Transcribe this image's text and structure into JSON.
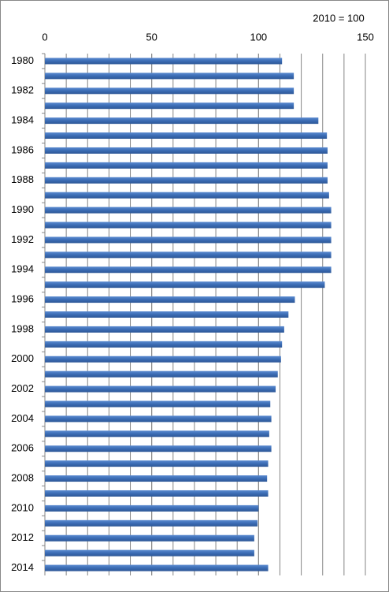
{
  "chart_data": {
    "type": "bar",
    "orientation": "horizontal",
    "annotation": "2010 = 100",
    "categories": [
      "1980",
      null,
      "1982",
      null,
      "1984",
      null,
      "1986",
      null,
      "1988",
      null,
      "1990",
      null,
      "1992",
      null,
      "1994",
      null,
      "1996",
      null,
      "1998",
      null,
      "2000",
      null,
      "2002",
      null,
      "2004",
      null,
      "2006",
      null,
      "2008",
      null,
      "2010",
      null,
      "2012",
      null,
      "2014"
    ],
    "values": [
      111,
      116.5,
      116.5,
      116.5,
      128,
      132,
      132.3,
      132.3,
      132.3,
      133,
      134,
      134,
      134,
      134,
      134,
      131,
      117,
      114,
      112,
      111,
      110.5,
      109,
      108,
      105.5,
      106,
      105,
      106,
      104.5,
      104,
      104.5,
      100,
      99.5,
      98,
      98,
      104.5
    ],
    "color": "#3b6cb4",
    "xlim": [
      0,
      150
    ],
    "xticks": [
      0,
      50,
      100,
      150
    ],
    "grid": true,
    "grid_step": 10
  }
}
